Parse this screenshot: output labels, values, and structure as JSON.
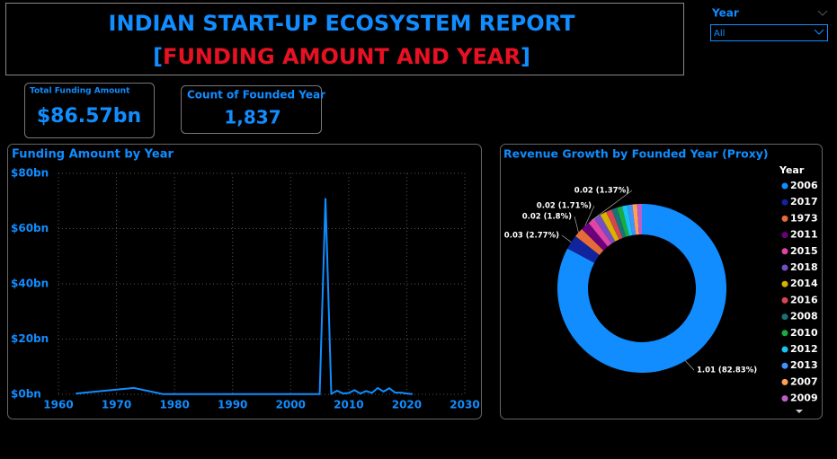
{
  "header": {
    "title": "INDIAN START-UP ECOSYSTEM REPORT",
    "subtitle": [
      "[",
      "FUNDING AMOUNT AND YEAR",
      "]"
    ]
  },
  "slicer": {
    "label": "Year",
    "selection": "All"
  },
  "cards": [
    {
      "label": "Total Funding Amount",
      "value": "$86.57bn"
    },
    {
      "label": "Count of Founded Year",
      "value": "1,837"
    }
  ],
  "chart_data": [
    {
      "type": "line",
      "title": "Funding Amount by Year",
      "color": "#118DFF",
      "grid": true,
      "x": [
        1963,
        1973,
        1978,
        1990,
        2000,
        2005,
        2006,
        2007,
        2008,
        2009,
        2010,
        2011,
        2012,
        2013,
        2014,
        2015,
        2016,
        2017,
        2018,
        2019,
        2020,
        2021
      ],
      "values": [
        0.3,
        2.3,
        0.1,
        0.1,
        0.1,
        0.1,
        71,
        0.2,
        1.3,
        0.3,
        0.5,
        1.5,
        0.3,
        1.2,
        0.5,
        2.3,
        1.0,
        2.2,
        0.6,
        0.6,
        0.3,
        0.1
      ],
      "xlim": [
        1960,
        2030
      ],
      "xticks": [
        1960,
        1970,
        1980,
        1990,
        2000,
        2010,
        2020,
        2030
      ],
      "ylim": [
        0,
        80
      ],
      "yticks": [
        {
          "value": 0,
          "label": "$0bn"
        },
        {
          "value": 20,
          "label": "$20bn"
        },
        {
          "value": 40,
          "label": "$40bn"
        },
        {
          "value": 60,
          "label": "$60bn"
        },
        {
          "value": 80,
          "label": "$80bn"
        }
      ]
    },
    {
      "type": "donut",
      "title": "Revenue Growth by Founded Year (Proxy)",
      "legend_title": "Year",
      "categories": [
        "2006",
        "2017",
        "1973",
        "2011",
        "2015",
        "2018",
        "2014",
        "2016",
        "2008",
        "2010",
        "2012",
        "2013",
        "2007",
        "2009"
      ],
      "values": [
        1.01,
        0.0338,
        0.0219,
        0.0209,
        0.0167,
        0.016,
        0.015,
        0.014,
        0.013,
        0.012,
        0.012,
        0.012,
        0.011,
        0.0111
      ],
      "value_labels": [
        "1.01 (82.83%)",
        "0.03 (2.77%)",
        "0.02 (1.8%)",
        "0.02 (1.71%)",
        "0.02 (1.37%)",
        null,
        null,
        null,
        null,
        null,
        null,
        null,
        null,
        null
      ],
      "colors": [
        "#118DFF",
        "#12239E",
        "#E66C37",
        "#6B007B",
        "#E044A7",
        "#744EC2",
        "#D9B300",
        "#D64550",
        "#197278",
        "#1AAB40",
        "#15C6F4",
        "#4092FF",
        "#FFA058",
        "#BE5DC9"
      ]
    }
  ]
}
